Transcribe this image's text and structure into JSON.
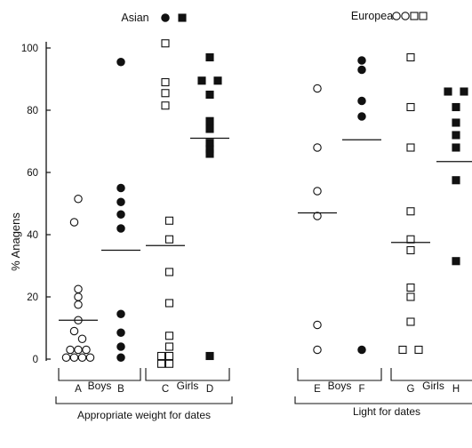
{
  "chart_data": {
    "type": "scatter",
    "ylabel": "% Anagens",
    "ylim": [
      0,
      110
    ],
    "yticks": [
      0,
      20,
      40,
      60,
      80,
      100
    ],
    "grid": false,
    "panels": [
      {
        "id": "asian",
        "title": "Asian",
        "group_label": "Appropriate weight for dates",
        "show_y_axis": true,
        "title_markers": [
          {
            "shape": "circle",
            "fill": "filled"
          },
          {
            "shape": "square",
            "fill": "filled"
          }
        ],
        "categories": [
          {
            "id": "A",
            "label": "A",
            "marker": "circle",
            "fill": "open",
            "mean": 12.5,
            "points": [
              {
                "y": 51.5,
                "dx": 0
              },
              {
                "y": 44,
                "dx": -0.5
              },
              {
                "y": 22.5,
                "dx": 0
              },
              {
                "y": 20,
                "dx": 0
              },
              {
                "y": 17.5,
                "dx": 0
              },
              {
                "y": 12.5,
                "dx": 0
              },
              {
                "y": 9,
                "dx": -0.5
              },
              {
                "y": 6.5,
                "dx": 0.5
              },
              {
                "y": 3,
                "dx": 0
              },
              {
                "y": 3,
                "dx": -1
              },
              {
                "y": 3,
                "dx": 1
              },
              {
                "y": 0.5,
                "dx": -1.5
              },
              {
                "y": 0.5,
                "dx": -0.5
              },
              {
                "y": 0.5,
                "dx": 0.5
              },
              {
                "y": 0.5,
                "dx": 1.5
              }
            ]
          },
          {
            "id": "B",
            "label": "B",
            "marker": "circle",
            "fill": "filled",
            "mean": 35,
            "points": [
              {
                "y": 95.5,
                "dx": 0
              },
              {
                "y": 55,
                "dx": 0
              },
              {
                "y": 50.5,
                "dx": 0
              },
              {
                "y": 46.5,
                "dx": 0
              },
              {
                "y": 42,
                "dx": 0
              },
              {
                "y": 14.5,
                "dx": 0
              },
              {
                "y": 8.5,
                "dx": 0
              },
              {
                "y": 4,
                "dx": 0
              },
              {
                "y": 0.5,
                "dx": 0
              }
            ]
          },
          {
            "id": "C",
            "label": "C",
            "marker": "square",
            "fill": "open",
            "mean": 36.5,
            "points": [
              {
                "y": 101.5,
                "dx": 0
              },
              {
                "y": 89,
                "dx": 0
              },
              {
                "y": 85.5,
                "dx": 0
              },
              {
                "y": 81.5,
                "dx": 0
              },
              {
                "y": 44.5,
                "dx": 0.5
              },
              {
                "y": 38.5,
                "dx": 0.5
              },
              {
                "y": 28,
                "dx": 0.5
              },
              {
                "y": 18,
                "dx": 0.5
              },
              {
                "y": 7.5,
                "dx": 0.5
              },
              {
                "y": 4,
                "dx": 0.5
              },
              {
                "y": 1,
                "dx": -0.5
              },
              {
                "y": 1,
                "dx": 0.5
              },
              {
                "y": -1.5,
                "dx": -0.5
              },
              {
                "y": -1.5,
                "dx": 0.5
              }
            ]
          },
          {
            "id": "D",
            "label": "D",
            "marker": "square",
            "fill": "filled",
            "mean": 71,
            "points": [
              {
                "y": 97,
                "dx": 0
              },
              {
                "y": 89.5,
                "dx": -1
              },
              {
                "y": 89.5,
                "dx": 1
              },
              {
                "y": 85,
                "dx": 0
              },
              {
                "y": 76.5,
                "dx": 0
              },
              {
                "y": 74,
                "dx": 0
              },
              {
                "y": 69.5,
                "dx": 0
              },
              {
                "y": 67.5,
                "dx": 0
              },
              {
                "y": 66,
                "dx": 0
              },
              {
                "y": 1,
                "dx": 0
              }
            ]
          }
        ],
        "subgroups": [
          {
            "label": "Boys",
            "categories": [
              "A",
              "B"
            ]
          },
          {
            "label": "Girls",
            "categories": [
              "C",
              "D"
            ]
          }
        ]
      },
      {
        "id": "european",
        "title": "European",
        "group_label": "Light  for dates",
        "show_y_axis": false,
        "title_markers": [
          {
            "shape": "circle",
            "fill": "open"
          },
          {
            "shape": "circle",
            "fill": "open"
          },
          {
            "shape": "square",
            "fill": "open"
          },
          {
            "shape": "square",
            "fill": "open"
          }
        ],
        "categories": [
          {
            "id": "E",
            "label": "E",
            "marker": "circle",
            "fill": "open",
            "mean": 47,
            "points": [
              {
                "y": 87,
                "dx": 0
              },
              {
                "y": 68,
                "dx": 0
              },
              {
                "y": 54,
                "dx": 0
              },
              {
                "y": 46,
                "dx": 0
              },
              {
                "y": 11,
                "dx": 0
              },
              {
                "y": 3,
                "dx": 0
              }
            ]
          },
          {
            "id": "F",
            "label": "F",
            "marker": "circle",
            "fill": "filled",
            "mean": 70.5,
            "points": [
              {
                "y": 96,
                "dx": 0
              },
              {
                "y": 93,
                "dx": 0
              },
              {
                "y": 83,
                "dx": 0
              },
              {
                "y": 78,
                "dx": 0
              },
              {
                "y": 3,
                "dx": 0
              }
            ]
          },
          {
            "id": "G",
            "label": "G",
            "marker": "square",
            "fill": "open",
            "mean": 37.5,
            "points": [
              {
                "y": 97,
                "dx": 0
              },
              {
                "y": 81,
                "dx": 0
              },
              {
                "y": 68,
                "dx": 0
              },
              {
                "y": 47.5,
                "dx": 0
              },
              {
                "y": 38.5,
                "dx": 0
              },
              {
                "y": 35,
                "dx": 0
              },
              {
                "y": 23,
                "dx": 0
              },
              {
                "y": 20,
                "dx": 0
              },
              {
                "y": 12,
                "dx": 0
              },
              {
                "y": 3,
                "dx": -1
              },
              {
                "y": 3,
                "dx": 1
              }
            ]
          },
          {
            "id": "H",
            "label": "H",
            "marker": "square",
            "fill": "filled",
            "mean": 63.5,
            "points": [
              {
                "y": 86,
                "dx": -1
              },
              {
                "y": 86,
                "dx": 1
              },
              {
                "y": 81,
                "dx": 0
              },
              {
                "y": 76,
                "dx": 0
              },
              {
                "y": 72,
                "dx": 0
              },
              {
                "y": 68,
                "dx": 0
              },
              {
                "y": 57.5,
                "dx": 0
              },
              {
                "y": 31.5,
                "dx": 0
              }
            ]
          }
        ],
        "subgroups": [
          {
            "label": "Boys",
            "categories": [
              "E",
              "F"
            ]
          },
          {
            "label": "Girls",
            "categories": [
              "G",
              "H"
            ]
          }
        ]
      }
    ]
  }
}
